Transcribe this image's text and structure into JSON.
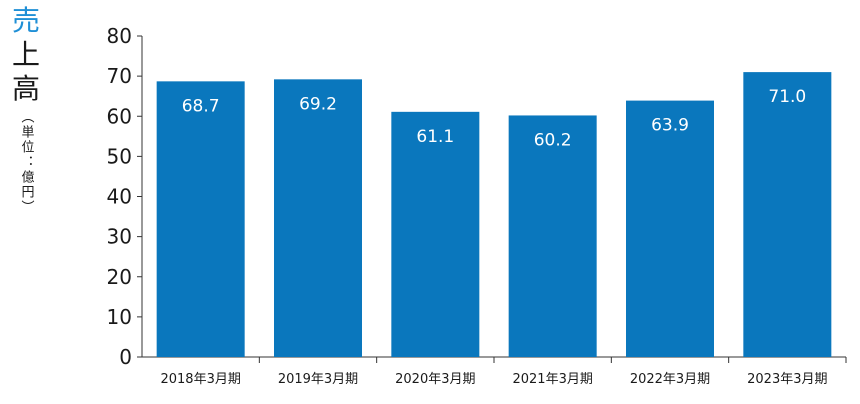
{
  "chart_data": {
    "type": "bar",
    "ylabel_parts": [
      "売",
      "上",
      "高"
    ],
    "ylabel_unit": "（単位：億円）",
    "categories": [
      "2018年3月期",
      "2019年3月期",
      "2020年3月期",
      "2021年3月期",
      "2022年3月期",
      "2023年3月期"
    ],
    "values": [
      68.7,
      69.2,
      61.1,
      60.2,
      63.9,
      71.0
    ],
    "value_labels": [
      "68.7",
      "69.2",
      "61.1",
      "60.2",
      "63.9",
      "71.0"
    ],
    "ylim": [
      0,
      80
    ],
    "yticks": [
      "0",
      "10",
      "20",
      "30",
      "40",
      "50",
      "60",
      "70",
      "80"
    ],
    "grid": false,
    "bar_color": "#0a77bd",
    "label_color": "#ffffff",
    "ylabel_accent_color": "#1f8fd6"
  }
}
